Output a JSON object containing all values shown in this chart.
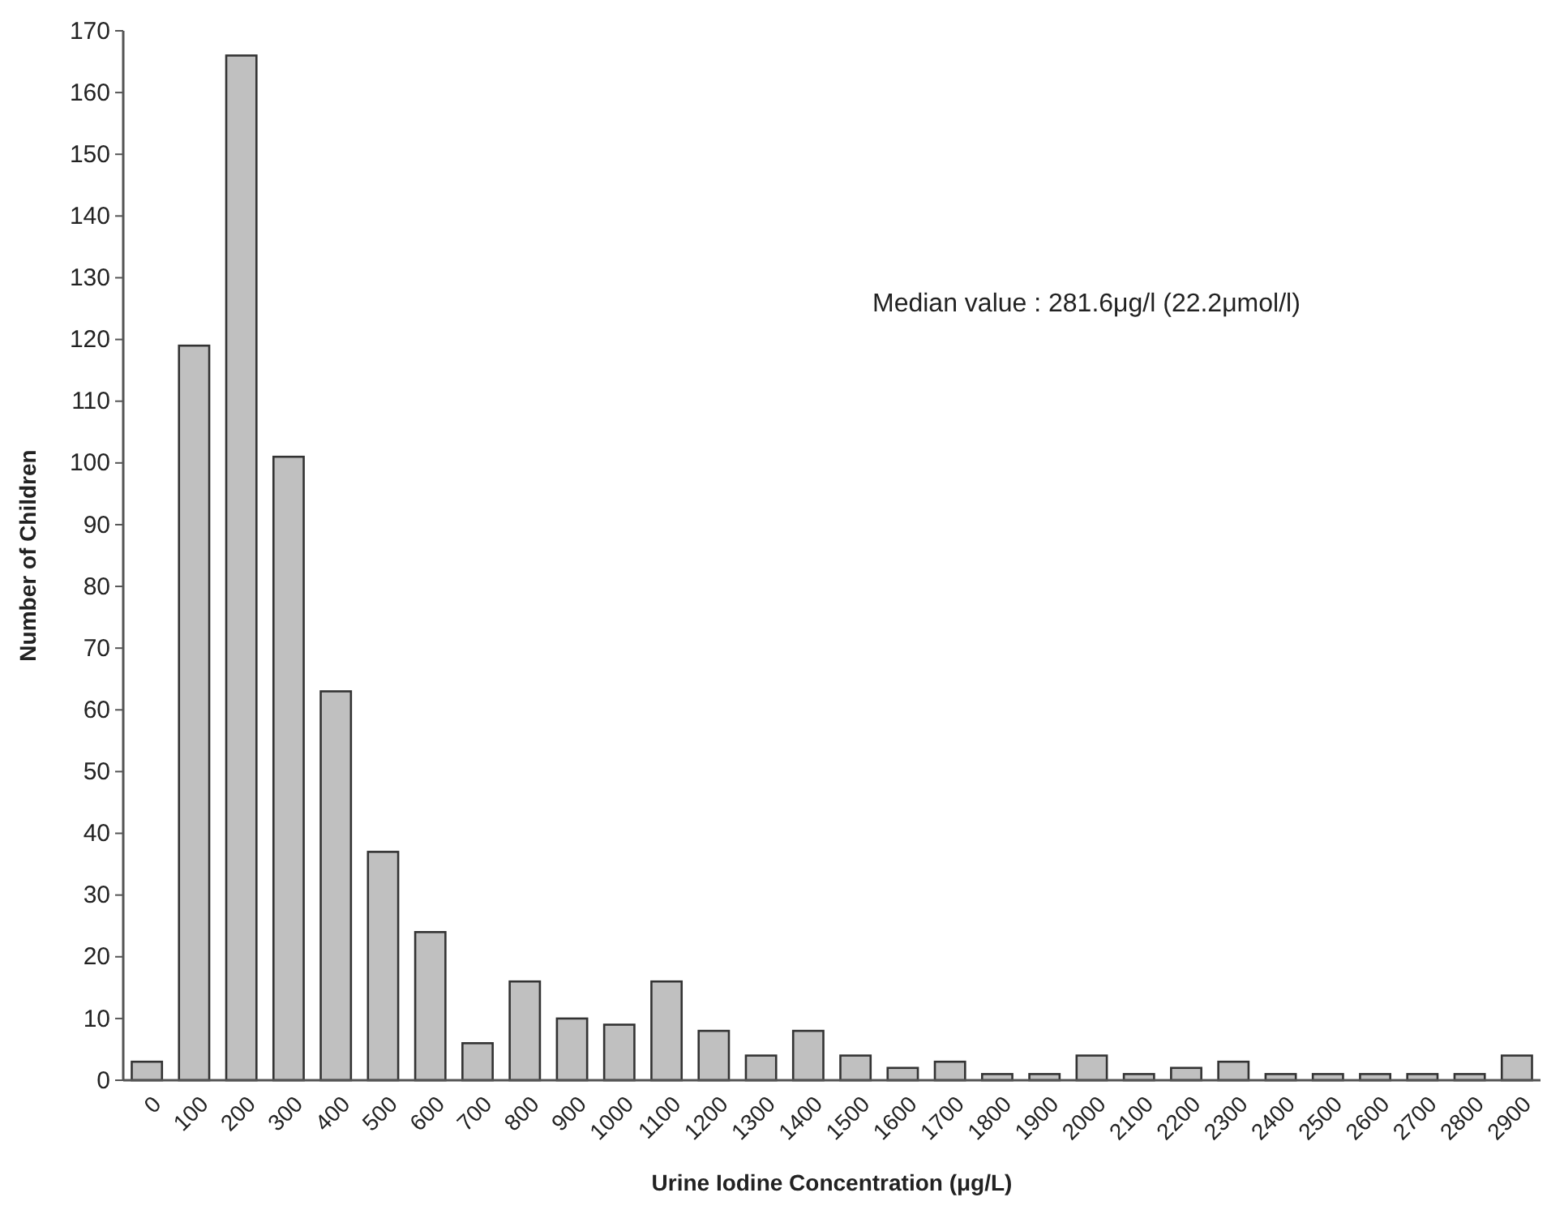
{
  "chart_data": {
    "type": "bar",
    "xlabel": "Urine Iodine Concentration (μg/L)",
    "ylabel": "Number of Children",
    "categories": [
      "0",
      "100",
      "200",
      "300",
      "400",
      "500",
      "600",
      "700",
      "800",
      "900",
      "1000",
      "1100",
      "1200",
      "1300",
      "1400",
      "1500",
      "1600",
      "1700",
      "1800",
      "1900",
      "2000",
      "2100",
      "2200",
      "2300",
      "2400",
      "2500",
      "2600",
      "2700",
      "2800",
      "2900"
    ],
    "values": [
      3,
      119,
      166,
      101,
      63,
      37,
      24,
      6,
      16,
      10,
      9,
      16,
      8,
      4,
      8,
      4,
      2,
      3,
      1,
      1,
      4,
      1,
      2,
      3,
      1,
      1,
      1,
      1,
      1,
      4
    ],
    "color": "#c0c0c0",
    "ylim": [
      0,
      170
    ],
    "yticks": [
      0,
      10,
      20,
      30,
      40,
      50,
      60,
      70,
      80,
      90,
      100,
      110,
      120,
      130,
      140,
      150,
      160,
      170
    ],
    "grid": false,
    "annotations": [
      "Median value : 281.6μg/l (22.2μmol/l)"
    ]
  }
}
